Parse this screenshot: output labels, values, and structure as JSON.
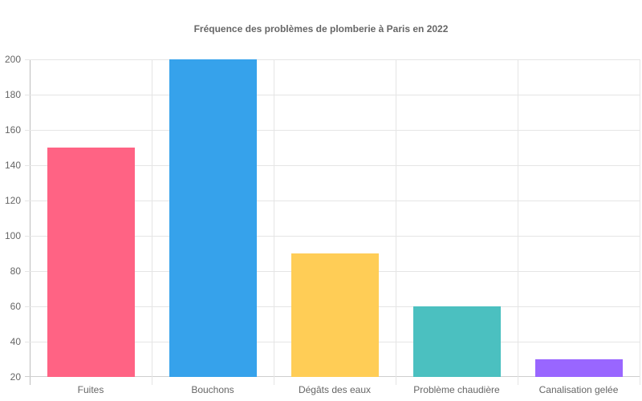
{
  "title": "Fréquence des problèmes de plomberie à Paris en 2022",
  "chart_data": {
    "type": "bar",
    "title": "Fréquence des problèmes de plomberie à Paris en 2022",
    "categories": [
      "Fuites",
      "Bouchons",
      "Dégâts des eaux",
      "Problème chaudière",
      "Canalisation gelée"
    ],
    "values": [
      150,
      200,
      90,
      60,
      30
    ],
    "colors": [
      "#ff6384",
      "#36a2eb",
      "#ffcd56",
      "#4bc0c0",
      "#9966ff"
    ],
    "xlabel": "",
    "ylabel": "",
    "ylim": [
      20,
      200
    ],
    "yticks": [
      200,
      180,
      160,
      140,
      120,
      100,
      80,
      60,
      40,
      20
    ],
    "grid": true,
    "legend": "none"
  }
}
